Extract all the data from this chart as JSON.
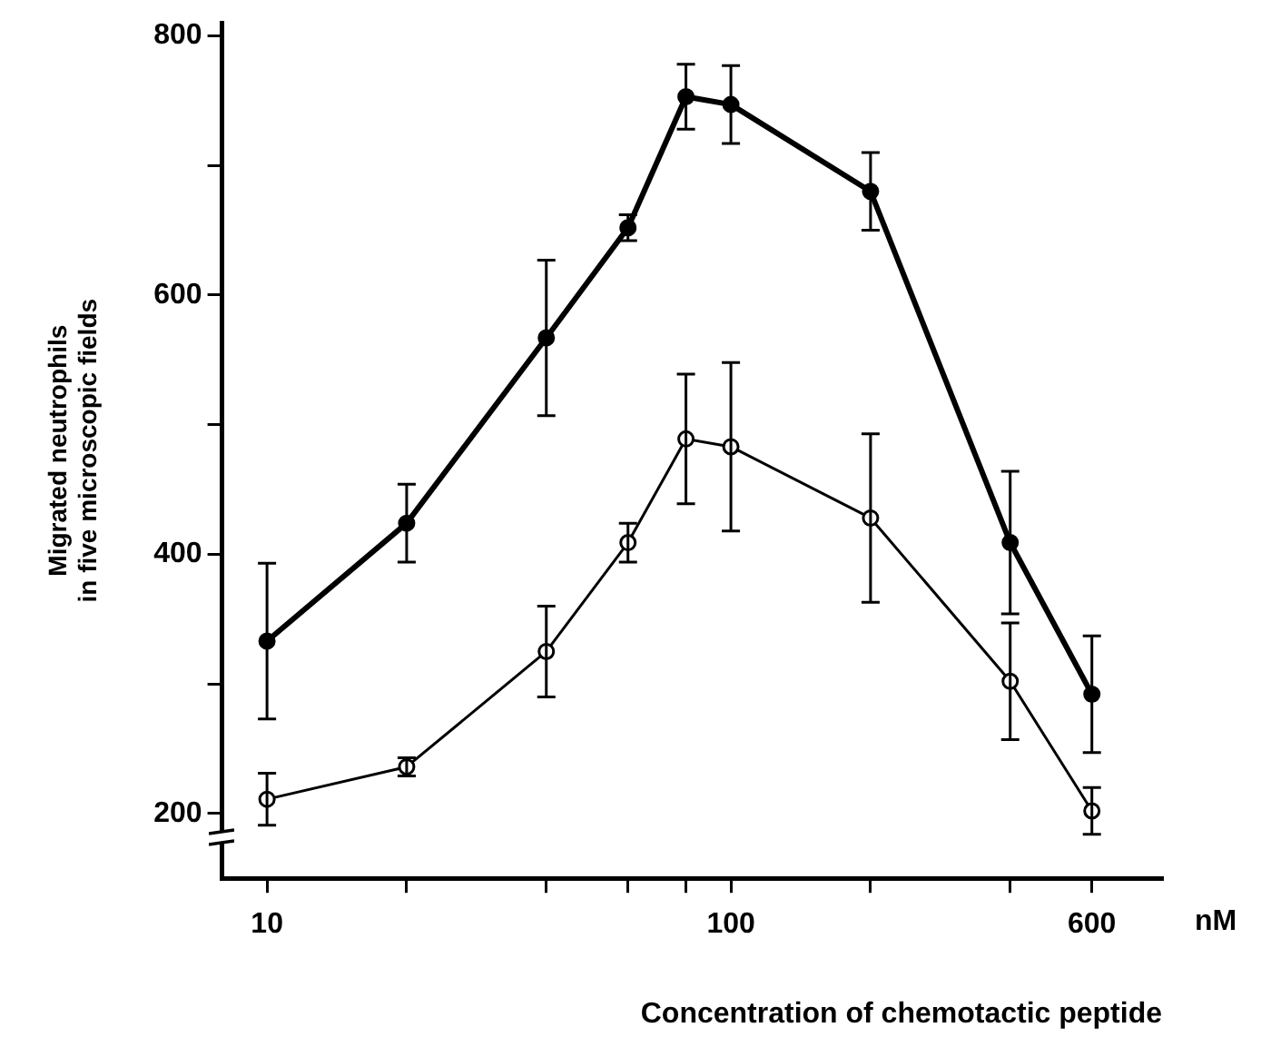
{
  "chart_data": {
    "type": "line",
    "xlabel": "Concentration of chemotactic peptide",
    "ylabel": "Migrated neutrophils\nin five microscopic fields",
    "annotations": [
      "nM"
    ],
    "x": [
      10,
      20,
      40,
      60,
      80,
      100,
      200,
      400,
      600
    ],
    "series": [
      {
        "color": "#000000",
        "values": [
          333,
          424,
          567,
          652,
          753,
          747,
          680,
          409,
          292
        ],
        "errors": [
          60,
          30,
          60,
          10,
          25,
          30,
          30,
          55,
          45
        ]
      },
      {
        "color": "#000000",
        "values": [
          211,
          236,
          325,
          409,
          489,
          483,
          428,
          302,
          202
        ],
        "errors": [
          20,
          7,
          35,
          15,
          50,
          65,
          65,
          45,
          18
        ]
      }
    ],
    "log": "x",
    "xlim": [
      8,
      850
    ],
    "xticks": [
      10,
      {
        "value": 20,
        "label": null
      },
      {
        "value": 40,
        "label": null
      },
      {
        "value": 60,
        "label": null
      },
      {
        "value": 80,
        "label": null
      },
      100,
      {
        "value": 200,
        "label": null
      },
      {
        "value": 400,
        "label": null
      },
      600
    ],
    "ylim": [
      150,
      810
    ],
    "yticks": [
      200,
      {
        "value": 300,
        "label": null
      },
      400,
      {
        "value": 500,
        "label": null
      },
      600,
      {
        "value": 700,
        "label": null
      },
      800
    ],
    "marker": "circle",
    "line_style": "solid",
    "grid": false,
    "legend": false
  }
}
